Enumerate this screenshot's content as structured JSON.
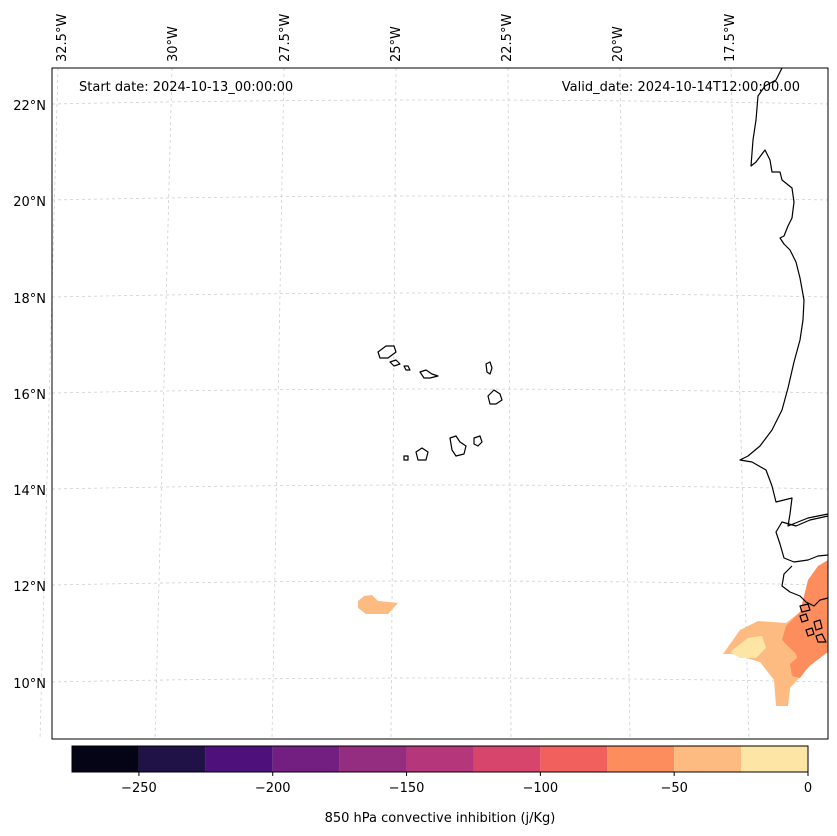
{
  "map": {
    "start_date": "Start date: 2024-10-13_00:00:00",
    "valid_date": "Valid_date: 2024-10-14T12:00:00.00",
    "lon_labels": [
      "32.5°W",
      "30°W",
      "27.5°W",
      "25°W",
      "22.5°W",
      "20°W",
      "17.5°W"
    ],
    "lat_labels": [
      "22°N",
      "20°N",
      "18°N",
      "16°N",
      "14°N",
      "12°N",
      "10°N"
    ],
    "variable": "850 hPa convective inhibition (j/Kg)"
  },
  "colorbar": {
    "label": "850 hPa convective inhibition (j/Kg)",
    "bins": [
      -275,
      -250,
      -225,
      -200,
      -175,
      -150,
      -125,
      -100,
      -75,
      -50,
      -25,
      0
    ],
    "tick_labels": [
      "−250",
      "−200",
      "−150",
      "−100",
      "−50",
      "0"
    ],
    "tick_values": [
      -250,
      -200,
      -150,
      -100,
      -50,
      0
    ],
    "colors": [
      "#050416",
      "#201146",
      "#4e117b",
      "#721f81",
      "#942c80",
      "#b5367a",
      "#d8456c",
      "#f1605d",
      "#fd8d5c",
      "#febb81",
      "#fde6a5"
    ]
  },
  "colors": {
    "cin_-75_-50": "#fd8d5c",
    "cin_-50_-25": "#febb81",
    "cin_-25_0": "#fde6a5"
  }
}
